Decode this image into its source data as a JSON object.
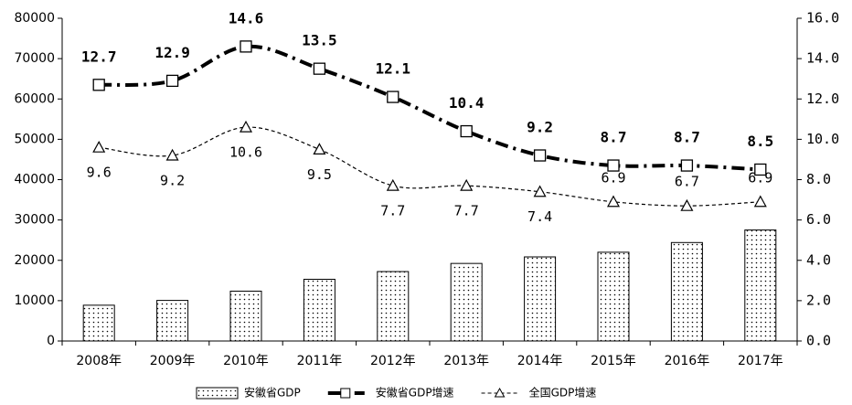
{
  "chart_data": {
    "type": "bar-line",
    "categories": [
      "2008年",
      "2009年",
      "2010年",
      "2011年",
      "2012年",
      "2013年",
      "2014年",
      "2015年",
      "2016年",
      "2017年"
    ],
    "series": [
      {
        "name": "安徽省GDP",
        "type": "bar",
        "color": "#000000",
        "values": [
          8874,
          10063,
          12359,
          15301,
          17212,
          19229,
          20849,
          22006,
          24408,
          27518
        ]
      },
      {
        "name": "安徽省GDP增速",
        "type": "line",
        "axis": "y2",
        "color": "#000000",
        "values": [
          12.7,
          12.9,
          14.6,
          13.5,
          12.1,
          10.4,
          9.2,
          8.7,
          8.7,
          8.5
        ]
      },
      {
        "name": "全国GDP增速",
        "type": "line",
        "axis": "y2",
        "color": "#000000",
        "values": [
          9.6,
          9.2,
          10.6,
          9.5,
          7.7,
          7.7,
          7.4,
          6.9,
          6.7,
          6.9
        ]
      }
    ],
    "ylim": [
      0,
      80000
    ],
    "yticks": [
      0,
      10000,
      20000,
      30000,
      40000,
      50000,
      60000,
      70000,
      80000
    ],
    "y2lim": [
      0,
      16
    ],
    "y2ticks": [
      {
        "value": 0,
        "label": "0.0"
      },
      {
        "value": 2,
        "label": "2.0"
      },
      {
        "value": 4,
        "label": "4.0"
      },
      {
        "value": 6,
        "label": "6.0"
      },
      {
        "value": 8,
        "label": "8.0"
      },
      {
        "value": 10,
        "label": "10.0"
      },
      {
        "value": 12,
        "label": "12.0"
      },
      {
        "value": 14,
        "label": "14.0"
      },
      {
        "value": 16,
        "label": "16.0"
      }
    ],
    "grid": false,
    "legend": "bottom"
  }
}
